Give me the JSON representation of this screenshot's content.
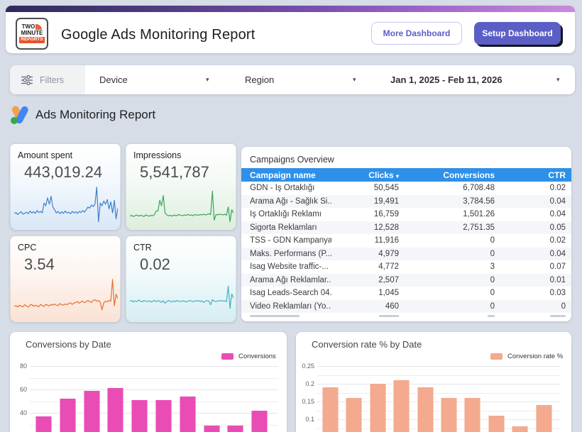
{
  "header": {
    "logo": {
      "line1": "TWO",
      "line2": "MINUTE",
      "line3": "REPORTS"
    },
    "title": "Google Ads Monitoring Report",
    "more_button": "More Dashboard",
    "setup_button": "Setup Dashboard"
  },
  "filters": {
    "label": "Filters",
    "device": "Device",
    "region": "Region",
    "date_range": "Jan 1, 2025 - Feb 11, 2026",
    "caret": "▾"
  },
  "section": {
    "title": "Ads Monitoring Report"
  },
  "kpis": [
    {
      "label": "Amount spent",
      "value": "443,019.24"
    },
    {
      "label": "Impressions",
      "value": "5,541,787"
    },
    {
      "label": "CPC",
      "value": "3.54"
    },
    {
      "label": "CTR",
      "value": "0.02"
    }
  ],
  "table": {
    "title": "Campaigns Overview",
    "columns": [
      "Campaign name",
      "Clicks",
      "Conversions",
      "CTR"
    ],
    "sort_column": "Clicks",
    "sort_caret": "▾",
    "rows": [
      {
        "name": "GDN - İş Ortaklığı",
        "clicks": "50,545",
        "conversions": "6,708.48",
        "ctr": "0.02"
      },
      {
        "name": "Arama Ağı - Sağlık Si...",
        "clicks": "19,491",
        "conversions": "3,784.56",
        "ctr": "0.04"
      },
      {
        "name": "İş Ortaklığı Reklamı",
        "clicks": "16,759",
        "conversions": "1,501.26",
        "ctr": "0.04"
      },
      {
        "name": "Sigorta Reklamları",
        "clicks": "12,528",
        "conversions": "2,751.35",
        "ctr": "0.05"
      },
      {
        "name": "TSS - GDN Kampanyası",
        "clicks": "11,916",
        "conversions": "0",
        "ctr": "0.02"
      },
      {
        "name": "Maks. Performans (P...",
        "clicks": "4,979",
        "conversions": "0",
        "ctr": "0.04"
      },
      {
        "name": "İsag Website traffic-...",
        "clicks": "4,772",
        "conversions": "3",
        "ctr": "0.07"
      },
      {
        "name": "Arama Ağı Reklamlar...",
        "clicks": "2,507",
        "conversions": "0",
        "ctr": "0.01"
      },
      {
        "name": "İsag Leads-Search 04...",
        "clicks": "1,045",
        "conversions": "0",
        "ctr": "0.03"
      },
      {
        "name": "Video Reklamları (Yo...",
        "clicks": "460",
        "conversions": "0",
        "ctr": "0"
      }
    ]
  },
  "colors": {
    "accent_purple": "#5a5ec5",
    "table_header_blue": "#2e90e8",
    "background": "#d6dde6"
  },
  "chart_data": [
    {
      "type": "line",
      "title": "Amount spent",
      "current_value": 443019.24,
      "color": "#3d7fd0",
      "values": [
        28,
        31,
        26,
        30,
        33,
        27,
        29,
        32,
        28,
        35,
        30,
        33,
        29,
        36,
        31,
        34,
        30,
        55,
        48,
        68,
        52,
        72,
        45,
        38,
        30,
        34,
        28,
        33,
        29,
        35,
        30,
        32,
        28,
        34,
        30,
        33,
        29,
        34,
        31,
        36,
        32,
        38,
        45,
        42,
        50,
        46,
        52,
        95,
        8,
        55,
        48,
        60,
        52,
        64,
        40,
        58,
        30,
        62,
        15,
        42
      ]
    },
    {
      "type": "line",
      "title": "Impressions",
      "current_value": 5541787,
      "color": "#3fa457",
      "values": [
        22,
        24,
        21,
        23,
        25,
        22,
        24,
        23,
        21,
        25,
        23,
        22,
        24,
        23,
        26,
        35,
        35,
        62,
        48,
        74,
        30,
        25,
        23,
        24,
        22,
        25,
        23,
        24,
        26,
        24,
        23,
        25,
        24,
        26,
        24,
        25,
        23,
        26,
        25,
        24,
        26,
        25,
        27,
        25,
        26,
        28,
        26,
        85,
        12,
        26,
        25,
        27,
        26,
        25,
        27,
        24,
        45,
        8,
        38,
        30
      ]
    },
    {
      "type": "line",
      "title": "CPC",
      "current_value": 3.54,
      "color": "#e8702f",
      "values": [
        26,
        29,
        25,
        30,
        27,
        26,
        31,
        28,
        25,
        30,
        32,
        27,
        30,
        28,
        26,
        32,
        29,
        27,
        32,
        30,
        28,
        32,
        30,
        33,
        30,
        29,
        34,
        31,
        30,
        33,
        31,
        34,
        36,
        32,
        35,
        37,
        39,
        35,
        38,
        40,
        36,
        39,
        42,
        39,
        37,
        42,
        44,
        40,
        42,
        37,
        18,
        36,
        40,
        38,
        42,
        40,
        95,
        28,
        58,
        46
      ]
    },
    {
      "type": "line",
      "title": "CTR",
      "current_value": 0.02,
      "color": "#3db3c4",
      "values": [
        40,
        42,
        38,
        41,
        39,
        43,
        40,
        38,
        42,
        40,
        39,
        41,
        38,
        40,
        42,
        39,
        41,
        40,
        37,
        41,
        35,
        39,
        42,
        40,
        38,
        41,
        39,
        42,
        40,
        39,
        41,
        40,
        38,
        40,
        42,
        40,
        39,
        41,
        40,
        42,
        39,
        41,
        37,
        40,
        42,
        40,
        31,
        44,
        40,
        39,
        41,
        40,
        42,
        40,
        41,
        39,
        78,
        22,
        58,
        48
      ]
    },
    {
      "type": "bar",
      "title": "Conversions by Date",
      "legend": "Conversions",
      "color": "#ea4cb5",
      "values": [
        37,
        52,
        59,
        61,
        51,
        51,
        54,
        29,
        29,
        42
      ],
      "categories": [],
      "x_labels_visible": false,
      "yticks": [
        40,
        60,
        80
      ],
      "ylabel": "",
      "xlabel": "",
      "grid": true,
      "legend_position": "top-right"
    },
    {
      "type": "bar",
      "title": "Conversion rate % by Date",
      "legend": "Conversion rate %",
      "color": "#f3aa8e",
      "values": [
        0.19,
        0.16,
        0.2,
        0.21,
        0.19,
        0.16,
        0.16,
        0.11,
        0.08,
        0.14
      ],
      "categories": [],
      "x_labels_visible": false,
      "yticks": [
        0.1,
        0.15,
        0.2,
        0.25
      ],
      "ylabel": "",
      "xlabel": "",
      "grid": true,
      "legend_position": "top-right"
    }
  ]
}
